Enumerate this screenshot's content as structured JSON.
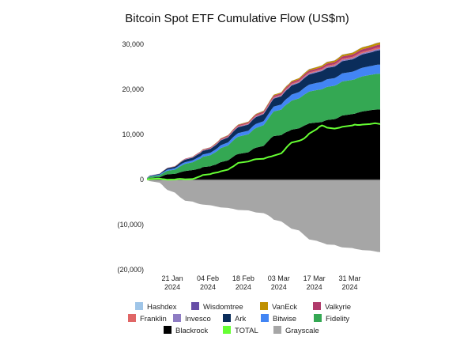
{
  "chart_data": {
    "type": "area",
    "stacked": true,
    "title": "Bitcoin Spot ETF Cumulative Flow (US$m)",
    "xlabel": "",
    "ylabel": "",
    "ylim": [
      -20000,
      30000
    ],
    "y_ticks": [
      30000,
      20000,
      10000,
      0,
      -10000,
      -20000
    ],
    "y_tick_labels": [
      "30,000",
      "20,000",
      "10,000",
      "0",
      "(10,000)",
      "(20,000)"
    ],
    "x": [
      "2024-01-11",
      "2024-01-12",
      "2024-01-16",
      "2024-01-17",
      "2024-01-18",
      "2024-01-19",
      "2024-01-22",
      "2024-01-23",
      "2024-01-24",
      "2024-01-25",
      "2024-01-26",
      "2024-01-29",
      "2024-01-30",
      "2024-01-31",
      "2024-02-01",
      "2024-02-02",
      "2024-02-05",
      "2024-02-06",
      "2024-02-07",
      "2024-02-08",
      "2024-02-09",
      "2024-02-12",
      "2024-02-13",
      "2024-02-14",
      "2024-02-15",
      "2024-02-16",
      "2024-02-20",
      "2024-02-21",
      "2024-02-22",
      "2024-02-23",
      "2024-02-26",
      "2024-02-27",
      "2024-02-28",
      "2024-02-29",
      "2024-03-01",
      "2024-03-04",
      "2024-03-05",
      "2024-03-06",
      "2024-03-07",
      "2024-03-08",
      "2024-03-11",
      "2024-03-12",
      "2024-03-13",
      "2024-03-14",
      "2024-03-15",
      "2024-03-18",
      "2024-03-19",
      "2024-03-20",
      "2024-03-21",
      "2024-03-22",
      "2024-03-25",
      "2024-03-26",
      "2024-03-27",
      "2024-03-28",
      "2024-04-01",
      "2024-04-02",
      "2024-04-03",
      "2024-04-04",
      "2024-04-05",
      "2024-04-08",
      "2024-04-09",
      "2024-04-10",
      "2024-04-11",
      "2024-04-12"
    ],
    "x_range": [
      "2024-01-11",
      "2024-04-12"
    ],
    "x_ticks": [
      {
        "date": "2024-01-21",
        "line1": "21 Jan",
        "line2": "2024"
      },
      {
        "date": "2024-02-04",
        "line1": "04 Feb",
        "line2": "2024"
      },
      {
        "date": "2024-02-18",
        "line1": "18 Feb",
        "line2": "2024"
      },
      {
        "date": "2024-03-03",
        "line1": "03 Mar",
        "line2": "2024"
      },
      {
        "date": "2024-03-17",
        "line1": "17 Mar",
        "line2": "2024"
      },
      {
        "date": "2024-03-31",
        "line1": "31 Mar",
        "line2": "2024"
      }
    ],
    "stack_order": [
      "Blackrock",
      "Fidelity",
      "Bitwise",
      "Ark",
      "Invesco",
      "Franklin",
      "Valkyrie",
      "VanEck",
      "Wisdomtree",
      "Hashdex"
    ],
    "series": [
      {
        "name": "Blackrock",
        "color": "#000000",
        "values": [
          100,
          350,
          500,
          750,
          1000,
          1150,
          1250,
          1400,
          1600,
          1750,
          1900,
          2100,
          2200,
          2350,
          2450,
          2750,
          2950,
          3150,
          3300,
          3550,
          3850,
          4250,
          4650,
          5050,
          5450,
          5650,
          6050,
          6450,
          6850,
          7050,
          7450,
          8050,
          8650,
          9250,
          9650,
          9850,
          10250,
          10550,
          10750,
          11050,
          11350,
          11650,
          11950,
          12200,
          12450,
          12650,
          12700,
          12750,
          13000,
          13200,
          13400,
          13600,
          13900,
          14200,
          14500,
          14600,
          14800,
          14950,
          15100,
          15350,
          15450,
          15500,
          15520,
          15550
        ]
      },
      {
        "name": "Fidelity",
        "color": "#34a853",
        "values": [
          150,
          300,
          450,
          550,
          650,
          800,
          950,
          1150,
          1300,
          1450,
          1550,
          1750,
          1900,
          2050,
          2150,
          2300,
          2450,
          2600,
          2750,
          2900,
          3100,
          3300,
          3450,
          3600,
          3700,
          3850,
          4000,
          4100,
          4250,
          4400,
          4600,
          4750,
          4950,
          5150,
          5450,
          5650,
          5900,
          6100,
          6250,
          6450,
          6650,
          6750,
          6850,
          6950,
          7050,
          7200,
          7250,
          7250,
          7300,
          7350,
          7400,
          7450,
          7500,
          7550,
          7600,
          7650,
          7700,
          7750,
          7800,
          7850,
          7850,
          7900,
          7950,
          7950
        ]
      },
      {
        "name": "Bitwise",
        "color": "#4285f4",
        "values": [
          50,
          100,
          150,
          200,
          200,
          250,
          300,
          300,
          350,
          400,
          400,
          400,
          450,
          450,
          500,
          500,
          550,
          550,
          600,
          600,
          650,
          700,
          700,
          750,
          750,
          800,
          800,
          850,
          850,
          900,
          900,
          950,
          1000,
          1050,
          1100,
          1150,
          1200,
          1250,
          1300,
          1350,
          1400,
          1450,
          1500,
          1550,
          1550,
          1600,
          1600,
          1650,
          1650,
          1700,
          1700,
          1750,
          1750,
          1800,
          1800,
          1850,
          1850,
          1900,
          1900,
          1950,
          1950,
          2000,
          2000,
          2000
        ]
      },
      {
        "name": "Ark",
        "color": "#0b2d5b",
        "values": [
          50,
          100,
          150,
          200,
          250,
          300,
          350,
          400,
          450,
          500,
          550,
          600,
          650,
          700,
          750,
          800,
          850,
          900,
          950,
          1000,
          1050,
          1100,
          1150,
          1200,
          1250,
          1300,
          1350,
          1400,
          1450,
          1500,
          1550,
          1600,
          1650,
          1700,
          1750,
          1800,
          1850,
          1900,
          1950,
          2000,
          2050,
          2100,
          2150,
          2200,
          2250,
          2300,
          2350,
          2400,
          2450,
          2500,
          2550,
          2600,
          2650,
          2700,
          2750,
          2800,
          2850,
          2900,
          2950,
          3000,
          3050,
          3100,
          3150,
          3200
        ]
      },
      {
        "name": "Invesco",
        "color": "#8e7cc3",
        "values": [
          5,
          10,
          15,
          20,
          25,
          30,
          35,
          40,
          45,
          50,
          55,
          60,
          65,
          70,
          75,
          80,
          85,
          90,
          95,
          100,
          105,
          110,
          115,
          120,
          125,
          130,
          135,
          140,
          145,
          150,
          155,
          160,
          165,
          170,
          175,
          180,
          185,
          190,
          195,
          200,
          205,
          210,
          215,
          220,
          225,
          230,
          235,
          240,
          245,
          250,
          255,
          260,
          265,
          270,
          275,
          280,
          285,
          290,
          295,
          300,
          305,
          310,
          315,
          320
        ]
      },
      {
        "name": "Franklin",
        "color": "#e06666",
        "values": [
          5,
          10,
          15,
          20,
          25,
          30,
          35,
          40,
          45,
          50,
          55,
          60,
          65,
          70,
          75,
          80,
          85,
          90,
          95,
          100,
          105,
          110,
          115,
          120,
          125,
          130,
          135,
          140,
          145,
          150,
          155,
          160,
          165,
          170,
          175,
          180,
          185,
          190,
          195,
          200,
          205,
          210,
          215,
          220,
          225,
          230,
          235,
          240,
          245,
          250,
          255,
          260,
          265,
          270,
          275,
          280,
          285,
          290,
          295,
          300,
          305,
          310,
          315,
          320
        ]
      },
      {
        "name": "Valkyrie",
        "color": "#b03a6b",
        "values": [
          5,
          10,
          15,
          20,
          25,
          30,
          40,
          50,
          60,
          70,
          80,
          90,
          100,
          110,
          120,
          130,
          140,
          150,
          160,
          170,
          180,
          190,
          200,
          210,
          220,
          230,
          240,
          250,
          260,
          270,
          280,
          290,
          300,
          310,
          320,
          330,
          340,
          350,
          360,
          370,
          380,
          390,
          400,
          410,
          420,
          430,
          440,
          450,
          460,
          470,
          480,
          490,
          500,
          510,
          520,
          530,
          540,
          550,
          560,
          570,
          580,
          590,
          600,
          610
        ]
      },
      {
        "name": "VanEck",
        "color": "#bf9000",
        "values": [
          3,
          5,
          8,
          10,
          12,
          15,
          18,
          20,
          22,
          25,
          28,
          30,
          35,
          40,
          45,
          50,
          55,
          60,
          65,
          70,
          75,
          80,
          85,
          90,
          95,
          100,
          110,
          120,
          130,
          140,
          150,
          160,
          170,
          180,
          190,
          200,
          210,
          220,
          230,
          240,
          250,
          260,
          270,
          280,
          290,
          300,
          310,
          320,
          330,
          340,
          350,
          360,
          370,
          380,
          390,
          400,
          410,
          420,
          430,
          440,
          450,
          460,
          470,
          480
        ]
      },
      {
        "name": "Wisdomtree",
        "color": "#674ea7",
        "values": [
          1,
          1,
          2,
          2,
          3,
          3,
          4,
          4,
          5,
          5,
          6,
          6,
          7,
          7,
          8,
          8,
          9,
          9,
          10,
          10,
          11,
          11,
          12,
          12,
          13,
          13,
          14,
          14,
          15,
          15,
          16,
          16,
          17,
          17,
          18,
          18,
          19,
          19,
          20,
          20,
          21,
          21,
          22,
          22,
          23,
          23,
          24,
          24,
          25,
          25,
          26,
          26,
          27,
          27,
          28,
          28,
          29,
          29,
          30,
          30,
          31,
          31,
          32,
          32
        ]
      },
      {
        "name": "Hashdex",
        "color": "#9fc5e8",
        "values": [
          1,
          1,
          2,
          2,
          3,
          3,
          4,
          4,
          5,
          5,
          6,
          6,
          7,
          7,
          8,
          8,
          9,
          9,
          10,
          10,
          11,
          11,
          12,
          12,
          13,
          13,
          14,
          14,
          15,
          15,
          16,
          16,
          17,
          17,
          18,
          18,
          19,
          19,
          20,
          20,
          21,
          21,
          22,
          22,
          23,
          23,
          24,
          24,
          25,
          25,
          26,
          26,
          27,
          27,
          28,
          28,
          29,
          29,
          30,
          30,
          31,
          31,
          32,
          32
        ]
      },
      {
        "name": "Grayscale",
        "color": "#a6a6a6",
        "values": [
          -100,
          -350,
          -700,
          -1200,
          -1800,
          -2300,
          -2900,
          -3400,
          -3900,
          -4300,
          -4700,
          -4900,
          -5100,
          -5300,
          -5450,
          -5550,
          -5700,
          -5800,
          -5950,
          -6050,
          -6200,
          -6300,
          -6400,
          -6500,
          -6650,
          -6750,
          -6850,
          -7000,
          -7150,
          -7300,
          -7450,
          -7700,
          -8000,
          -8400,
          -8900,
          -9300,
          -9700,
          -10100,
          -10500,
          -10900,
          -11300,
          -11800,
          -12300,
          -12800,
          -13300,
          -13600,
          -13800,
          -14000,
          -14200,
          -14400,
          -14500,
          -14700,
          -14900,
          -15050,
          -15200,
          -15350,
          -15450,
          -15550,
          -15650,
          -15750,
          -15850,
          -15950,
          -16050,
          -16100
        ]
      },
      {
        "name": "TOTAL",
        "color": "#66ff33",
        "line": true,
        "values": [
          0,
          100,
          200,
          100,
          50,
          -50,
          0,
          100,
          150,
          100,
          50,
          100,
          300,
          500,
          700,
          1000,
          1200,
          1400,
          1500,
          1600,
          1800,
          2200,
          2600,
          2900,
          3300,
          3700,
          4000,
          4200,
          4400,
          4500,
          4600,
          4800,
          5000,
          5100,
          5300,
          5800,
          6400,
          7100,
          7700,
          8200,
          8600,
          8800,
          9100,
          9600,
          10200,
          11200,
          11700,
          12000,
          11800,
          11500,
          11300,
          11400,
          11500,
          11700,
          12000,
          12200,
          12100,
          12100,
          12200,
          12300,
          12400,
          12500,
          12400,
          12300
        ]
      }
    ],
    "legend": {
      "placement": "bottom",
      "rows": [
        [
          {
            "name": "Hashdex",
            "color": "#9fc5e8"
          },
          {
            "name": "Wisdomtree",
            "color": "#674ea7"
          },
          {
            "name": "VanEck",
            "color": "#bf9000"
          },
          {
            "name": "Valkyrie",
            "color": "#b03a6b"
          }
        ],
        [
          {
            "name": "Franklin",
            "color": "#e06666"
          },
          {
            "name": "Invesco",
            "color": "#8e7cc3"
          },
          {
            "name": "Ark",
            "color": "#0b2d5b"
          },
          {
            "name": "Bitwise",
            "color": "#4285f4"
          },
          {
            "name": "Fidelity",
            "color": "#34a853"
          }
        ],
        [
          {
            "name": "Blackrock",
            "color": "#000000"
          },
          {
            "name": "TOTAL",
            "color": "#66ff33"
          },
          {
            "name": "Grayscale",
            "color": "#a6a6a6"
          }
        ]
      ]
    },
    "grid": false,
    "zero_line": true
  }
}
